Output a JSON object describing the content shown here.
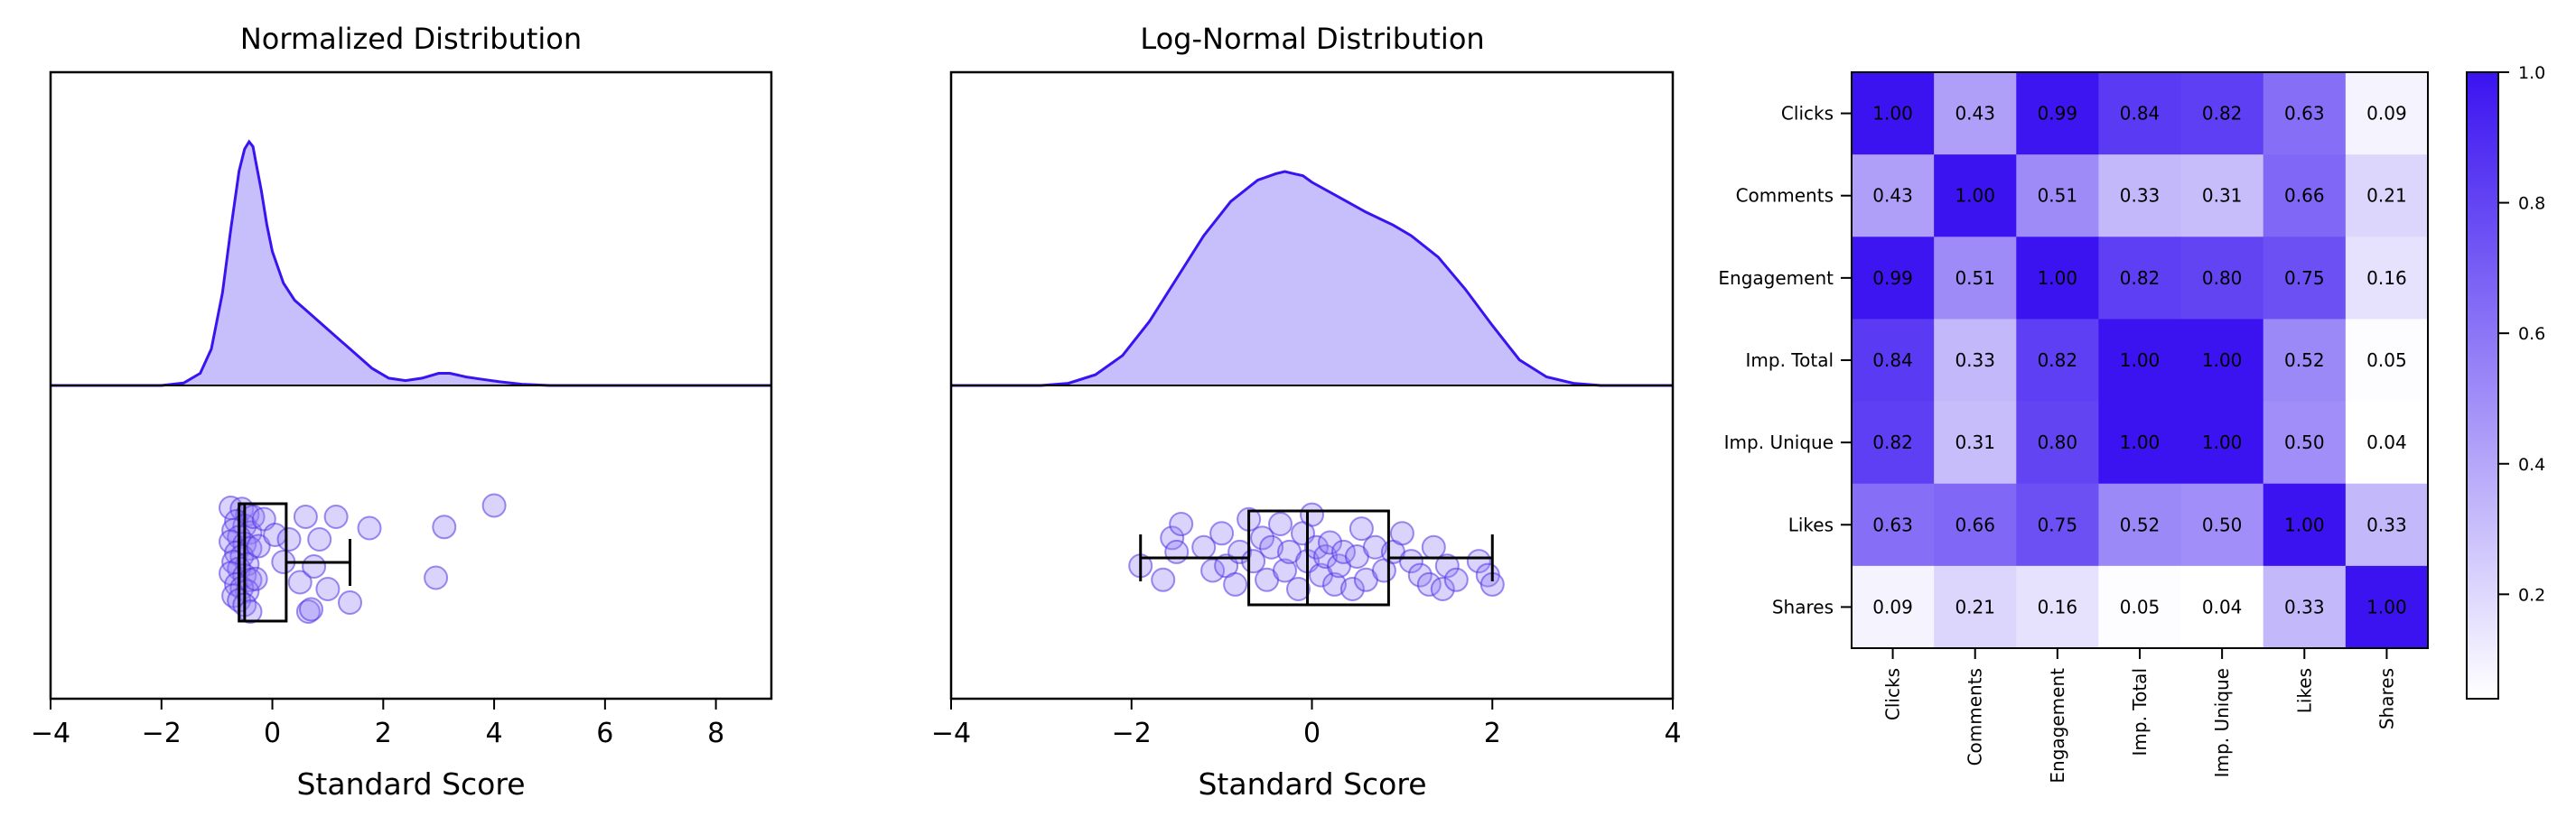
{
  "theme": {
    "accent": "#3a13f0",
    "fill": "#c7bffb",
    "axis": "#000000"
  },
  "chart_data": [
    {
      "type": "area",
      "title": "Normalized Distribution",
      "xlabel": "Standard Score",
      "ylabel": "",
      "xlim": [
        -4,
        9
      ],
      "xticks": [
        -4,
        -2,
        0,
        2,
        4,
        6,
        8
      ],
      "density": {
        "x": [
          -2.0,
          -1.6,
          -1.3,
          -1.1,
          -0.9,
          -0.75,
          -0.6,
          -0.5,
          -0.42,
          -0.35,
          -0.3,
          -0.2,
          -0.1,
          0.0,
          0.2,
          0.4,
          0.6,
          0.9,
          1.2,
          1.5,
          1.8,
          2.1,
          2.4,
          2.7,
          3.0,
          3.2,
          3.5,
          3.8,
          4.1,
          4.5,
          5.0,
          9.0
        ],
        "y": [
          0.0,
          0.01,
          0.05,
          0.15,
          0.38,
          0.64,
          0.88,
          0.97,
          1.0,
          0.98,
          0.92,
          0.8,
          0.66,
          0.55,
          0.42,
          0.35,
          0.31,
          0.25,
          0.19,
          0.13,
          0.07,
          0.03,
          0.02,
          0.03,
          0.05,
          0.05,
          0.035,
          0.025,
          0.015,
          0.005,
          0.0,
          0.0
        ]
      },
      "box": {
        "min": -0.6,
        "q1": -0.6,
        "median": -0.5,
        "q3": 0.25,
        "max": 1.4
      },
      "points": [
        {
          "x": -0.75,
          "y": 0.98
        },
        {
          "x": -0.55,
          "y": 0.97
        },
        {
          "x": -0.45,
          "y": 0.92
        },
        {
          "x": -0.65,
          "y": 0.86
        },
        {
          "x": -0.5,
          "y": 0.82
        },
        {
          "x": -0.7,
          "y": 0.78
        },
        {
          "x": -0.4,
          "y": 0.76
        },
        {
          "x": -0.6,
          "y": 0.72
        },
        {
          "x": -0.75,
          "y": 0.68
        },
        {
          "x": -0.5,
          "y": 0.66
        },
        {
          "x": -0.4,
          "y": 0.62
        },
        {
          "x": -0.65,
          "y": 0.58
        },
        {
          "x": -0.55,
          "y": 0.55
        },
        {
          "x": -0.7,
          "y": 0.5
        },
        {
          "x": -0.45,
          "y": 0.48
        },
        {
          "x": -0.6,
          "y": 0.44
        },
        {
          "x": -0.75,
          "y": 0.4
        },
        {
          "x": -0.5,
          "y": 0.38
        },
        {
          "x": -0.4,
          "y": 0.34
        },
        {
          "x": -0.65,
          "y": 0.3
        },
        {
          "x": -0.55,
          "y": 0.27
        },
        {
          "x": -0.45,
          "y": 0.24
        },
        {
          "x": -0.7,
          "y": 0.2
        },
        {
          "x": -0.6,
          "y": 0.16
        },
        {
          "x": -0.5,
          "y": 0.12
        },
        {
          "x": -0.4,
          "y": 0.06
        },
        {
          "x": -0.35,
          "y": 0.9
        },
        {
          "x": -0.3,
          "y": 0.35
        },
        {
          "x": -0.25,
          "y": 0.64
        },
        {
          "x": -0.15,
          "y": 0.88
        },
        {
          "x": 0.05,
          "y": 0.74
        },
        {
          "x": 0.2,
          "y": 0.5
        },
        {
          "x": 0.3,
          "y": 0.7
        },
        {
          "x": 0.5,
          "y": 0.32
        },
        {
          "x": 0.6,
          "y": 0.9
        },
        {
          "x": 0.75,
          "y": 0.46
        },
        {
          "x": 0.85,
          "y": 0.7
        },
        {
          "x": 1.0,
          "y": 0.26
        },
        {
          "x": 1.15,
          "y": 0.9
        },
        {
          "x": 0.65,
          "y": 0.06
        },
        {
          "x": 0.7,
          "y": 0.08
        },
        {
          "x": 1.4,
          "y": 0.14
        },
        {
          "x": 1.75,
          "y": 0.8
        },
        {
          "x": 2.95,
          "y": 0.36
        },
        {
          "x": 3.1,
          "y": 0.81
        },
        {
          "x": 4.0,
          "y": 1.0
        }
      ]
    },
    {
      "type": "area",
      "title": "Log-Normal Distribution",
      "xlabel": "Standard Score",
      "ylabel": "",
      "xlim": [
        -4,
        4
      ],
      "xticks": [
        -4,
        -2,
        0,
        2,
        4
      ],
      "density": {
        "x": [
          -4.0,
          -3.0,
          -2.7,
          -2.4,
          -2.1,
          -1.8,
          -1.5,
          -1.2,
          -0.9,
          -0.6,
          -0.4,
          -0.3,
          -0.2,
          -0.1,
          0.0,
          0.3,
          0.6,
          0.9,
          1.1,
          1.4,
          1.7,
          2.0,
          2.3,
          2.6,
          2.9,
          3.2,
          4.0
        ],
        "y": [
          0.0,
          0.0,
          0.01,
          0.05,
          0.14,
          0.3,
          0.5,
          0.7,
          0.86,
          0.96,
          0.99,
          1.0,
          0.99,
          0.98,
          0.95,
          0.88,
          0.81,
          0.75,
          0.7,
          0.6,
          0.45,
          0.28,
          0.12,
          0.04,
          0.01,
          0.0,
          0.0
        ]
      },
      "box": {
        "min": -1.9,
        "q1": -0.7,
        "median": -0.05,
        "q3": 0.85,
        "max": 2.0
      },
      "points": [
        {
          "x": -1.9,
          "y": 0.4
        },
        {
          "x": -1.65,
          "y": 0.25
        },
        {
          "x": -1.55,
          "y": 0.7
        },
        {
          "x": -1.45,
          "y": 0.85
        },
        {
          "x": -1.5,
          "y": 0.55
        },
        {
          "x": -1.2,
          "y": 0.6
        },
        {
          "x": -1.1,
          "y": 0.35
        },
        {
          "x": -1.0,
          "y": 0.75
        },
        {
          "x": -0.95,
          "y": 0.4
        },
        {
          "x": -0.85,
          "y": 0.2
        },
        {
          "x": -0.8,
          "y": 0.55
        },
        {
          "x": -0.7,
          "y": 0.9
        },
        {
          "x": -0.65,
          "y": 0.45
        },
        {
          "x": -0.55,
          "y": 0.7
        },
        {
          "x": -0.5,
          "y": 0.25
        },
        {
          "x": -0.45,
          "y": 0.6
        },
        {
          "x": -0.35,
          "y": 0.85
        },
        {
          "x": -0.3,
          "y": 0.35
        },
        {
          "x": -0.25,
          "y": 0.55
        },
        {
          "x": -0.15,
          "y": 0.15
        },
        {
          "x": -0.1,
          "y": 0.75
        },
        {
          "x": -0.05,
          "y": 0.45
        },
        {
          "x": 0.0,
          "y": 0.95
        },
        {
          "x": 0.05,
          "y": 0.6
        },
        {
          "x": 0.1,
          "y": 0.3
        },
        {
          "x": 0.15,
          "y": 0.5
        },
        {
          "x": 0.2,
          "y": 0.65
        },
        {
          "x": 0.25,
          "y": 0.2
        },
        {
          "x": 0.3,
          "y": 0.4
        },
        {
          "x": 0.35,
          "y": 0.55
        },
        {
          "x": 0.45,
          "y": 0.15
        },
        {
          "x": 0.5,
          "y": 0.5
        },
        {
          "x": 0.55,
          "y": 0.8
        },
        {
          "x": 0.6,
          "y": 0.25
        },
        {
          "x": 0.7,
          "y": 0.6
        },
        {
          "x": 0.8,
          "y": 0.35
        },
        {
          "x": 0.9,
          "y": 0.55
        },
        {
          "x": 1.0,
          "y": 0.75
        },
        {
          "x": 1.1,
          "y": 0.45
        },
        {
          "x": 1.2,
          "y": 0.3
        },
        {
          "x": 1.3,
          "y": 0.2
        },
        {
          "x": 1.35,
          "y": 0.6
        },
        {
          "x": 1.45,
          "y": 0.15
        },
        {
          "x": 1.5,
          "y": 0.4
        },
        {
          "x": 1.6,
          "y": 0.25
        },
        {
          "x": 1.85,
          "y": 0.45
        },
        {
          "x": 1.95,
          "y": 0.3
        },
        {
          "x": 2.0,
          "y": 0.2
        }
      ]
    },
    {
      "type": "heatmap",
      "title": "",
      "labels": [
        "Clicks",
        "Comments",
        "Engagement",
        "Imp. Total",
        "Imp. Unique",
        "Likes",
        "Shares"
      ],
      "matrix": [
        [
          1.0,
          0.43,
          0.99,
          0.84,
          0.82,
          0.63,
          0.09
        ],
        [
          0.43,
          1.0,
          0.51,
          0.33,
          0.31,
          0.66,
          0.21
        ],
        [
          0.99,
          0.51,
          1.0,
          0.82,
          0.8,
          0.75,
          0.16
        ],
        [
          0.84,
          0.33,
          0.82,
          1.0,
          1.0,
          0.52,
          0.05
        ],
        [
          0.82,
          0.31,
          0.8,
          1.0,
          1.0,
          0.5,
          0.04
        ],
        [
          0.63,
          0.66,
          0.75,
          0.52,
          0.5,
          1.0,
          0.33
        ],
        [
          0.09,
          0.21,
          0.16,
          0.05,
          0.04,
          0.33,
          1.0
        ]
      ],
      "colorbar": {
        "min": 0.04,
        "max": 1.0,
        "ticks": [
          0.2,
          0.4,
          0.6,
          0.8,
          1.0
        ],
        "tick_labels": [
          "0.2",
          "0.4",
          "0.6",
          "0.8",
          "1.0"
        ]
      },
      "colors": {
        "low": "#ffffff",
        "high": "#3a13f0"
      }
    }
  ]
}
